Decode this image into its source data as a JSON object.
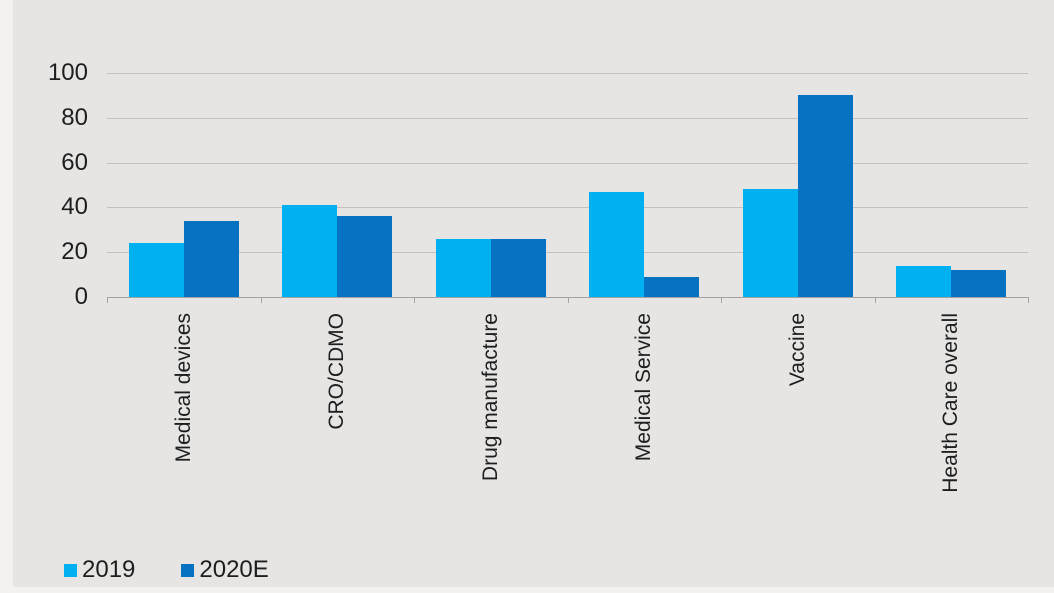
{
  "chart": {
    "background_color": "#e6e5e4",
    "frame_color": "#f3f2f1",
    "grid_color": "#c2c1c0",
    "axis_color": "#a3a2a1",
    "text_color": "#1e1e1e"
  },
  "legend": {
    "items": [
      {
        "label": "2019",
        "color": "#00b0f0"
      },
      {
        "label": "2020E",
        "color": "#0772c2"
      }
    ]
  },
  "chart_data": {
    "type": "bar",
    "title": "",
    "xlabel": "",
    "ylabel": "",
    "categories": [
      "Medical devices",
      "CRO/CDMO",
      "Drug manufacture",
      "Medical Service",
      "Vaccine",
      "Health Care overall"
    ],
    "series": [
      {
        "name": "2019",
        "color": "#00b0f0",
        "values": [
          24,
          41,
          26,
          47,
          48,
          14
        ]
      },
      {
        "name": "2020E",
        "color": "#0772c2",
        "values": [
          34,
          36,
          26,
          9,
          90,
          12
        ]
      }
    ],
    "ylim": [
      0,
      100
    ],
    "yticks": [
      0,
      20,
      40,
      60,
      80,
      100
    ],
    "grid": true,
    "category_labels_rotated_degrees": -90,
    "legend_position": "bottom-left"
  }
}
